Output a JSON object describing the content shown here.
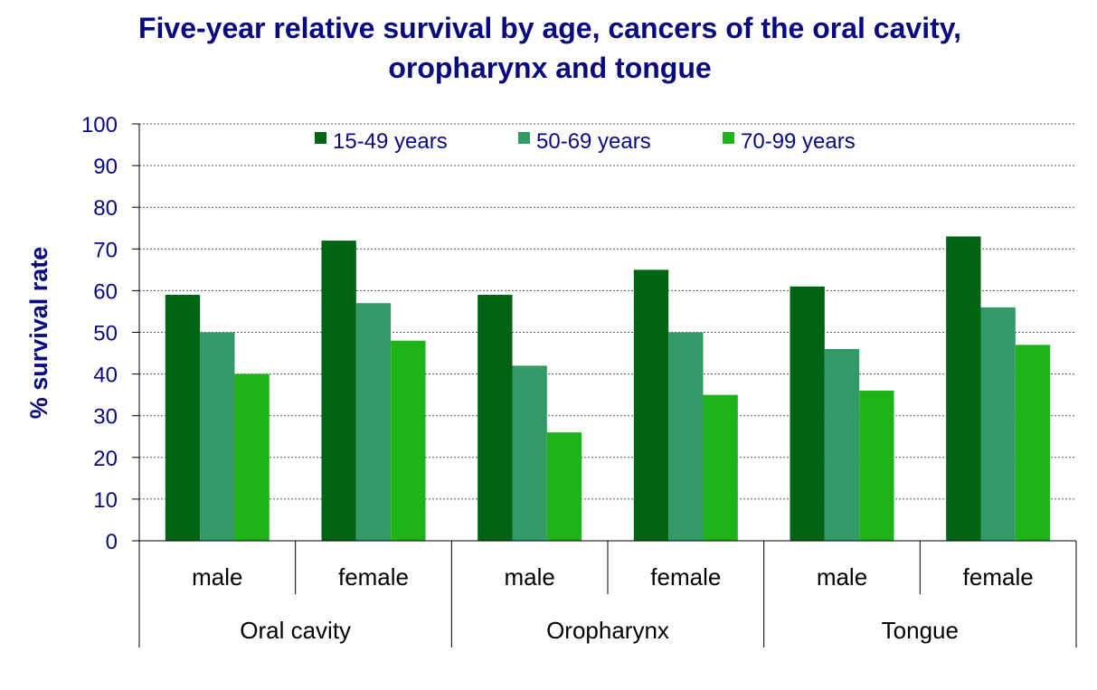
{
  "chart_data": {
    "type": "bar",
    "title_lines": [
      "Five-year relative survival by age, cancers of the oral cavity,",
      "oropharynx and tongue"
    ],
    "ylabel": "% survival rate",
    "xlabel": "",
    "ylim": [
      0,
      100
    ],
    "yticks": [
      0,
      10,
      20,
      30,
      40,
      50,
      60,
      70,
      80,
      90,
      100
    ],
    "grid": true,
    "legend_position": "top",
    "groups": [
      {
        "label": "Oral cavity",
        "categories": [
          "male",
          "female"
        ]
      },
      {
        "label": "Oropharynx",
        "categories": [
          "male",
          "female"
        ]
      },
      {
        "label": "Tongue",
        "categories": [
          "male",
          "female"
        ]
      }
    ],
    "series": [
      {
        "name": "15-49 years",
        "color": "#006414",
        "values": [
          59,
          72,
          59,
          65,
          61,
          73
        ]
      },
      {
        "name": "50-69 years",
        "color": "#339966",
        "values": [
          50,
          57,
          42,
          50,
          46,
          56
        ]
      },
      {
        "name": "70-99 years",
        "color": "#1fb31a",
        "values": [
          40,
          48,
          26,
          35,
          36,
          47
        ]
      }
    ]
  }
}
